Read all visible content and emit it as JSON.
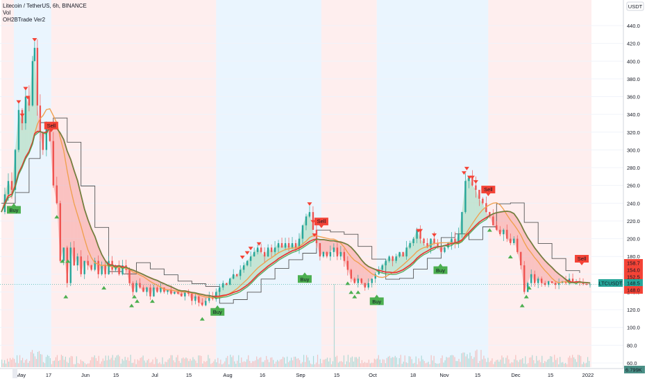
{
  "header": {
    "symbol_line": "Litecoin / TetherUS, 6h, BINANCE",
    "indicator_1": "Vol",
    "indicator_2": "OH2BTrade Ver2",
    "currency_button": "USDT"
  },
  "colors": {
    "background": "#ffffff",
    "buy_zone": "#e3f2fd",
    "sell_zone": "#fde8e8",
    "green_line": "#43a047",
    "red_line": "#e53935",
    "orange_line": "#f0a050",
    "step_line": "#555555",
    "buy_label": "#4caf50",
    "sell_label": "#f44336",
    "price_line": "#26a69a"
  },
  "chart_data": {
    "type": "line",
    "title": "Litecoin / TetherUS, 6h, BINANCE",
    "yaxis": {
      "ticks": [
        "440.0",
        "420.0",
        "400.0",
        "380.0",
        "360.0",
        "340.0",
        "320.0",
        "300.0",
        "280.0",
        "260.0",
        "240.0",
        "220.0",
        "200.0",
        "180.0",
        "160.0",
        "140.0",
        "120.0",
        "100.0",
        "80.0",
        "60.0"
      ],
      "range": [
        60,
        440
      ]
    },
    "xaxis": {
      "ticks": [
        "May",
        "17",
        "Jun",
        "15",
        "Jul",
        "15",
        "Aug",
        "16",
        "Sep",
        "15",
        "Oct",
        "18",
        "Nov",
        "15",
        "Dec",
        "15",
        "2022"
      ]
    },
    "price_series": [
      [
        0,
        230
      ],
      [
        5,
        250
      ],
      [
        10,
        265
      ],
      [
        15,
        255
      ],
      [
        20,
        300
      ],
      [
        25,
        345
      ],
      [
        30,
        330
      ],
      [
        35,
        360
      ],
      [
        40,
        350
      ],
      [
        45,
        400
      ],
      [
        48,
        415
      ],
      [
        52,
        350
      ],
      [
        56,
        320
      ],
      [
        60,
        300
      ],
      [
        65,
        330
      ],
      [
        70,
        310
      ],
      [
        75,
        260
      ],
      [
        80,
        240
      ],
      [
        85,
        175
      ],
      [
        90,
        190
      ],
      [
        95,
        150
      ],
      [
        100,
        190
      ],
      [
        105,
        170
      ],
      [
        110,
        180
      ],
      [
        115,
        160
      ],
      [
        120,
        175
      ],
      [
        125,
        170
      ],
      [
        130,
        165
      ],
      [
        135,
        175
      ],
      [
        140,
        160
      ],
      [
        145,
        170
      ],
      [
        150,
        160
      ],
      [
        155,
        175
      ],
      [
        160,
        165
      ],
      [
        165,
        170
      ],
      [
        170,
        160
      ],
      [
        175,
        170
      ],
      [
        180,
        165
      ],
      [
        185,
        150
      ],
      [
        190,
        140
      ],
      [
        195,
        150
      ],
      [
        200,
        145
      ],
      [
        205,
        140
      ],
      [
        210,
        145
      ],
      [
        215,
        135
      ],
      [
        220,
        145
      ],
      [
        225,
        140
      ],
      [
        230,
        145
      ],
      [
        235,
        140
      ],
      [
        240,
        142
      ],
      [
        245,
        138
      ],
      [
        250,
        140
      ],
      [
        255,
        138
      ],
      [
        260,
        135
      ],
      [
        265,
        140
      ],
      [
        270,
        138
      ],
      [
        275,
        130
      ],
      [
        280,
        135
      ],
      [
        285,
        128
      ],
      [
        290,
        125
      ],
      [
        295,
        130
      ],
      [
        300,
        135
      ],
      [
        305,
        132
      ],
      [
        310,
        140
      ],
      [
        315,
        145
      ],
      [
        320,
        150
      ],
      [
        325,
        148
      ],
      [
        330,
        155
      ],
      [
        335,
        160
      ],
      [
        340,
        158
      ],
      [
        345,
        165
      ],
      [
        350,
        170
      ],
      [
        355,
        175
      ],
      [
        360,
        180
      ],
      [
        365,
        185
      ],
      [
        370,
        190
      ],
      [
        375,
        185
      ],
      [
        380,
        180
      ],
      [
        385,
        190
      ],
      [
        390,
        185
      ],
      [
        395,
        190
      ],
      [
        400,
        195
      ],
      [
        405,
        190
      ],
      [
        410,
        195
      ],
      [
        415,
        190
      ],
      [
        420,
        195
      ],
      [
        425,
        190
      ],
      [
        430,
        200
      ],
      [
        435,
        215
      ],
      [
        440,
        225
      ],
      [
        445,
        230
      ],
      [
        450,
        210
      ],
      [
        455,
        195
      ],
      [
        460,
        180
      ],
      [
        465,
        185
      ],
      [
        470,
        180
      ],
      [
        475,
        185
      ],
      [
        480,
        190
      ],
      [
        485,
        180
      ],
      [
        490,
        185
      ],
      [
        495,
        175
      ],
      [
        500,
        165
      ],
      [
        505,
        155
      ],
      [
        510,
        150
      ],
      [
        515,
        155
      ],
      [
        520,
        150
      ],
      [
        525,
        145
      ],
      [
        530,
        150
      ],
      [
        535,
        155
      ],
      [
        540,
        160
      ],
      [
        545,
        165
      ],
      [
        550,
        170
      ],
      [
        555,
        175
      ],
      [
        560,
        180
      ],
      [
        565,
        175
      ],
      [
        570,
        180
      ],
      [
        575,
        185
      ],
      [
        580,
        180
      ],
      [
        585,
        190
      ],
      [
        590,
        195
      ],
      [
        595,
        200
      ],
      [
        600,
        210
      ],
      [
        605,
        200
      ],
      [
        610,
        195
      ],
      [
        615,
        190
      ],
      [
        620,
        200
      ],
      [
        625,
        195
      ],
      [
        630,
        190
      ],
      [
        635,
        185
      ],
      [
        640,
        190
      ],
      [
        645,
        195
      ],
      [
        650,
        200
      ],
      [
        655,
        195
      ],
      [
        660,
        205
      ],
      [
        665,
        230
      ],
      [
        670,
        265
      ],
      [
        675,
        270
      ],
      [
        680,
        260
      ],
      [
        685,
        255
      ],
      [
        690,
        245
      ],
      [
        695,
        240
      ],
      [
        700,
        230
      ],
      [
        705,
        225
      ],
      [
        710,
        215
      ],
      [
        715,
        210
      ],
      [
        720,
        205
      ],
      [
        725,
        210
      ],
      [
        730,
        200
      ],
      [
        735,
        195
      ],
      [
        740,
        200
      ],
      [
        745,
        185
      ],
      [
        750,
        170
      ],
      [
        755,
        140
      ],
      [
        760,
        150
      ],
      [
        765,
        160
      ],
      [
        770,
        150
      ],
      [
        775,
        155
      ],
      [
        780,
        150
      ],
      [
        785,
        148
      ],
      [
        790,
        152
      ],
      [
        795,
        150
      ],
      [
        800,
        148
      ],
      [
        805,
        150
      ],
      [
        810,
        152
      ],
      [
        815,
        150
      ],
      [
        820,
        155
      ],
      [
        825,
        150
      ],
      [
        830,
        152
      ],
      [
        835,
        150
      ],
      [
        840,
        149
      ],
      [
        845,
        148
      ],
      [
        850,
        148.5
      ]
    ],
    "buy_signals": [
      {
        "x": 18,
        "y": 240,
        "label": "Buy"
      },
      {
        "x": 312,
        "y": 125,
        "label": "Buy"
      },
      {
        "x": 438,
        "y": 162,
        "label": "Buy"
      },
      {
        "x": 542,
        "y": 137,
        "label": "Buy"
      },
      {
        "x": 634,
        "y": 172,
        "label": "Buy"
      }
    ],
    "sell_signals": [
      {
        "x": 72,
        "y": 320,
        "label": "Sell"
      },
      {
        "x": 462,
        "y": 212,
        "label": "Sell"
      },
      {
        "x": 703,
        "y": 248,
        "label": "Sell"
      },
      {
        "x": 838,
        "y": 170,
        "label": "Sell"
      }
    ],
    "price_labels": [
      {
        "value": "158.7",
        "color": "#f44336"
      },
      {
        "value": "154.0",
        "color": "#f44336"
      },
      {
        "value": "152.5",
        "color": "#f44336"
      },
      {
        "value": "148.5",
        "color": "#26a69a",
        "tag": "LTCUSDT"
      },
      {
        "value": "148.0",
        "color": "#f44336"
      }
    ],
    "volume_label": "6.799K"
  }
}
